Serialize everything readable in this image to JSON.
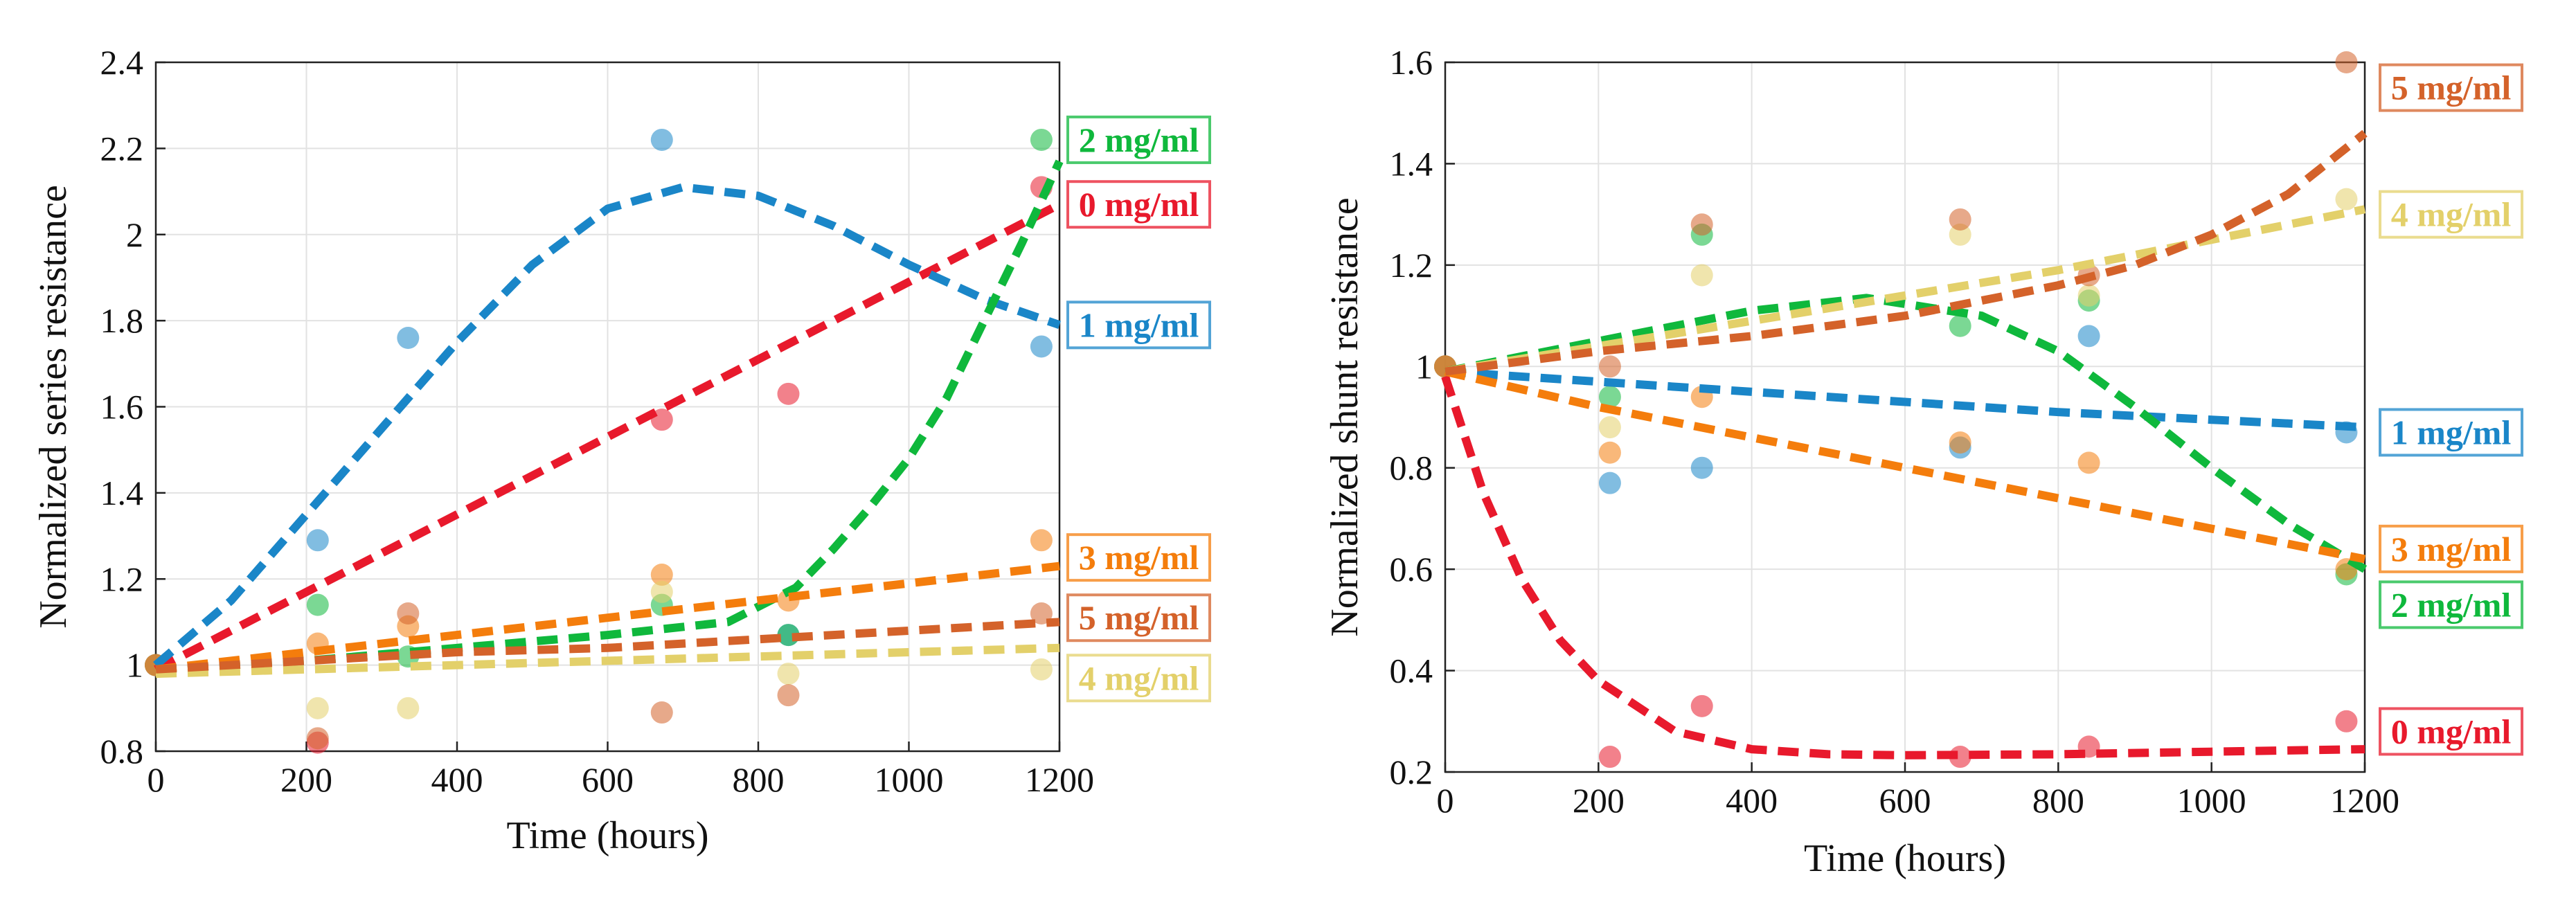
{
  "chart_data": [
    {
      "type": "scatter",
      "title": "",
      "xlabel": "Time (hours)",
      "ylabel": "Normalized series resistance",
      "xlim": [
        0,
        1200
      ],
      "ylim": [
        0.8,
        2.4
      ],
      "xticks": [
        0,
        200,
        400,
        600,
        800,
        1000,
        1200
      ],
      "xtick_labels": [
        "0",
        "200",
        "400",
        "600",
        "800",
        "1000",
        "1200"
      ],
      "yticks": [
        0.8,
        1,
        1.2,
        1.4,
        1.6,
        1.8,
        2,
        2.2,
        2.4
      ],
      "ytick_labels": [
        "0.8",
        "1",
        "1.2",
        "1.4",
        "1.6",
        "1.8",
        "2",
        "2.2",
        "2.4"
      ],
      "grid": true,
      "series": [
        {
          "name": "0 mg/ml",
          "color": "#e8192c",
          "points": [
            [
              0,
              1.0
            ],
            [
              215,
              0.82
            ],
            [
              672,
              1.57
            ],
            [
              840,
              1.63
            ],
            [
              1176,
              2.11
            ]
          ],
          "fit": [
            [
              0,
              0.99
            ],
            [
              200,
              1.17
            ],
            [
              400,
              1.35
            ],
            [
              600,
              1.53
            ],
            [
              800,
              1.71
            ],
            [
              1000,
              1.89
            ],
            [
              1200,
              2.07
            ]
          ]
        },
        {
          "name": "1 mg/ml",
          "color": "#1a86c8",
          "points": [
            [
              0,
              1.0
            ],
            [
              215,
              1.29
            ],
            [
              335,
              1.76
            ],
            [
              672,
              2.22
            ],
            [
              840,
              1.07
            ],
            [
              1176,
              1.74
            ]
          ],
          "fit": [
            [
              0,
              1.0
            ],
            [
              100,
              1.15
            ],
            [
              200,
              1.35
            ],
            [
              300,
              1.55
            ],
            [
              400,
              1.75
            ],
            [
              500,
              1.93
            ],
            [
              600,
              2.06
            ],
            [
              700,
              2.11
            ],
            [
              800,
              2.09
            ],
            [
              900,
              2.02
            ],
            [
              1000,
              1.93
            ],
            [
              1100,
              1.85
            ],
            [
              1200,
              1.79
            ]
          ]
        },
        {
          "name": "2 mg/ml",
          "color": "#0fb83c",
          "points": [
            [
              0,
              1.0
            ],
            [
              215,
              1.14
            ],
            [
              335,
              1.02
            ],
            [
              672,
              1.14
            ],
            [
              840,
              1.07
            ],
            [
              1176,
              2.22
            ]
          ],
          "fit": [
            [
              0,
              0.99
            ],
            [
              200,
              1.01
            ],
            [
              400,
              1.04
            ],
            [
              600,
              1.07
            ],
            [
              760,
              1.1
            ],
            [
              850,
              1.18
            ],
            [
              900,
              1.27
            ],
            [
              950,
              1.37
            ],
            [
              1000,
              1.48
            ],
            [
              1050,
              1.62
            ],
            [
              1100,
              1.8
            ],
            [
              1150,
              1.98
            ],
            [
              1200,
              2.17
            ]
          ]
        },
        {
          "name": "3 mg/ml",
          "color": "#f47d0c",
          "points": [
            [
              0,
              1.0
            ],
            [
              215,
              1.05
            ],
            [
              335,
              1.09
            ],
            [
              672,
              1.21
            ],
            [
              840,
              1.15
            ],
            [
              1176,
              1.29
            ]
          ],
          "fit": [
            [
              0,
              0.99
            ],
            [
              200,
              1.03
            ],
            [
              400,
              1.07
            ],
            [
              600,
              1.11
            ],
            [
              800,
              1.15
            ],
            [
              1000,
              1.19
            ],
            [
              1200,
              1.23
            ]
          ]
        },
        {
          "name": "4 mg/ml",
          "color": "#e3d06a",
          "points": [
            [
              0,
              1.0
            ],
            [
              215,
              0.9
            ],
            [
              335,
              0.9
            ],
            [
              672,
              1.17
            ],
            [
              840,
              0.98
            ],
            [
              1176,
              0.99
            ]
          ],
          "fit": [
            [
              0,
              0.98
            ],
            [
              200,
              0.99
            ],
            [
              400,
              1.0
            ],
            [
              600,
              1.01
            ],
            [
              800,
              1.02
            ],
            [
              1000,
              1.03
            ],
            [
              1200,
              1.04
            ]
          ]
        },
        {
          "name": "5 mg/ml",
          "color": "#d4622a",
          "points": [
            [
              0,
              1.0
            ],
            [
              215,
              0.83
            ],
            [
              335,
              1.12
            ],
            [
              672,
              0.89
            ],
            [
              840,
              0.93
            ],
            [
              1176,
              1.12
            ]
          ],
          "fit": [
            [
              0,
              0.99
            ],
            [
              200,
              1.01
            ],
            [
              400,
              1.03
            ],
            [
              600,
              1.04
            ],
            [
              800,
              1.06
            ],
            [
              1000,
              1.08
            ],
            [
              1200,
              1.1
            ]
          ]
        }
      ],
      "tags": [
        {
          "label": "2 mg/ml",
          "color": "#0fb83c",
          "y": 2.22
        },
        {
          "label": "0 mg/ml",
          "color": "#e8192c",
          "y": 2.07
        },
        {
          "label": "1 mg/ml",
          "color": "#1a86c8",
          "y": 1.79
        },
        {
          "label": "3 mg/ml",
          "color": "#f47d0c",
          "y": 1.25
        },
        {
          "label": "5 mg/ml",
          "color": "#d4622a",
          "y": 1.11
        },
        {
          "label": "4 mg/ml",
          "color": "#e3d06a",
          "y": 0.97
        }
      ]
    },
    {
      "type": "scatter",
      "title": "",
      "xlabel": "Time (hours)",
      "ylabel": "Normalized shunt resistance",
      "xlim": [
        0,
        1200
      ],
      "ylim": [
        0.2,
        1.6
      ],
      "xticks": [
        0,
        200,
        400,
        600,
        800,
        1000,
        1200
      ],
      "xtick_labels": [
        "0",
        "200",
        "400",
        "600",
        "800",
        "1000",
        "1200"
      ],
      "yticks": [
        0.2,
        0.4,
        0.6,
        0.8,
        1,
        1.2,
        1.4,
        1.6
      ],
      "ytick_labels": [
        "0.2",
        "0.4",
        "0.6",
        "0.8",
        "1",
        "1.2",
        "1.4",
        "1.6"
      ],
      "grid": true,
      "series": [
        {
          "name": "0 mg/ml",
          "color": "#e8192c",
          "points": [
            [
              0,
              1.0
            ],
            [
              215,
              0.23
            ],
            [
              335,
              0.33
            ],
            [
              672,
              0.23
            ],
            [
              840,
              0.25
            ],
            [
              1176,
              0.3
            ]
          ],
          "fit": [
            [
              0,
              0.98
            ],
            [
              50,
              0.75
            ],
            [
              100,
              0.58
            ],
            [
              150,
              0.46
            ],
            [
              200,
              0.38
            ],
            [
              300,
              0.28
            ],
            [
              400,
              0.245
            ],
            [
              500,
              0.235
            ],
            [
              600,
              0.233
            ],
            [
              800,
              0.235
            ],
            [
              1000,
              0.24
            ],
            [
              1200,
              0.245
            ]
          ]
        },
        {
          "name": "1 mg/ml",
          "color": "#1a86c8",
          "points": [
            [
              0,
              1.0
            ],
            [
              215,
              0.77
            ],
            [
              335,
              0.8
            ],
            [
              672,
              0.84
            ],
            [
              840,
              1.06
            ],
            [
              1176,
              0.87
            ]
          ],
          "fit": [
            [
              0,
              0.99
            ],
            [
              200,
              0.97
            ],
            [
              400,
              0.95
            ],
            [
              600,
              0.93
            ],
            [
              800,
              0.91
            ],
            [
              1000,
              0.895
            ],
            [
              1200,
              0.88
            ]
          ]
        },
        {
          "name": "2 mg/ml",
          "color": "#0fb83c",
          "points": [
            [
              0,
              1.0
            ],
            [
              215,
              0.94
            ],
            [
              335,
              1.26
            ],
            [
              672,
              1.08
            ],
            [
              840,
              1.13
            ],
            [
              1176,
              0.59
            ]
          ],
          "fit": [
            [
              0,
              0.99
            ],
            [
              200,
              1.05
            ],
            [
              400,
              1.11
            ],
            [
              550,
              1.135
            ],
            [
              700,
              1.1
            ],
            [
              800,
              1.03
            ],
            [
              900,
              0.92
            ],
            [
              1000,
              0.8
            ],
            [
              1100,
              0.69
            ],
            [
              1200,
              0.6
            ]
          ]
        },
        {
          "name": "3 mg/ml",
          "color": "#f47d0c",
          "points": [
            [
              0,
              1.0
            ],
            [
              215,
              0.83
            ],
            [
              335,
              0.94
            ],
            [
              672,
              0.85
            ],
            [
              840,
              0.81
            ],
            [
              1176,
              0.6
            ]
          ],
          "fit": [
            [
              0,
              0.99
            ],
            [
              200,
              0.92
            ],
            [
              400,
              0.86
            ],
            [
              600,
              0.8
            ],
            [
              800,
              0.74
            ],
            [
              1000,
              0.68
            ],
            [
              1200,
              0.62
            ]
          ]
        },
        {
          "name": "4 mg/ml",
          "color": "#e3d06a",
          "points": [
            [
              0,
              1.0
            ],
            [
              215,
              0.88
            ],
            [
              335,
              1.18
            ],
            [
              672,
              1.26
            ],
            [
              840,
              1.14
            ],
            [
              1176,
              1.33
            ]
          ],
          "fit": [
            [
              0,
              0.99
            ],
            [
              200,
              1.04
            ],
            [
              400,
              1.09
            ],
            [
              600,
              1.14
            ],
            [
              800,
              1.19
            ],
            [
              1000,
              1.25
            ],
            [
              1200,
              1.31
            ]
          ]
        },
        {
          "name": "5 mg/ml",
          "color": "#d4622a",
          "points": [
            [
              0,
              1.0
            ],
            [
              215,
              1.0
            ],
            [
              335,
              1.28
            ],
            [
              672,
              1.29
            ],
            [
              840,
              1.18
            ],
            [
              1176,
              1.6
            ]
          ],
          "fit": [
            [
              0,
              0.99
            ],
            [
              200,
              1.03
            ],
            [
              400,
              1.06
            ],
            [
              600,
              1.1
            ],
            [
              800,
              1.16
            ],
            [
              900,
              1.2
            ],
            [
              1000,
              1.26
            ],
            [
              1100,
              1.34
            ],
            [
              1200,
              1.46
            ]
          ]
        }
      ],
      "tags": [
        {
          "label": "5 mg/ml",
          "color": "#d4622a",
          "y": 1.55
        },
        {
          "label": "4 mg/ml",
          "color": "#e3d06a",
          "y": 1.3
        },
        {
          "label": "1 mg/ml",
          "color": "#1a86c8",
          "y": 0.87
        },
        {
          "label": "3 mg/ml",
          "color": "#f47d0c",
          "y": 0.64
        },
        {
          "label": "2 mg/ml",
          "color": "#0fb83c",
          "y": 0.53
        },
        {
          "label": "0 mg/ml",
          "color": "#e8192c",
          "y": 0.28
        }
      ]
    }
  ]
}
